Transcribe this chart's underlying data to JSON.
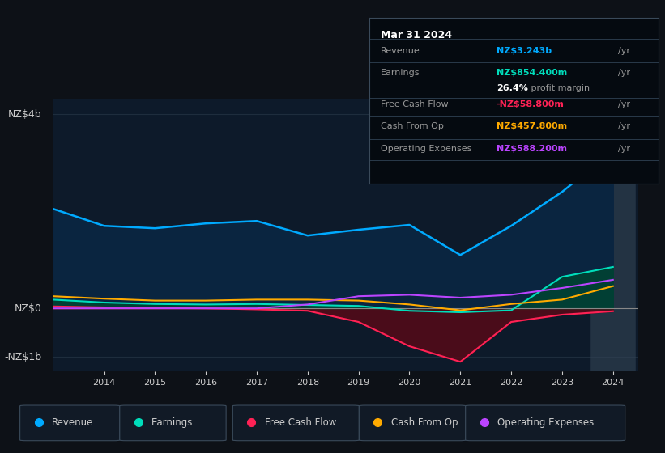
{
  "bg_color": "#0d1117",
  "chart_bg": "#0d1a2a",
  "grid_color": "#1e2d3d",
  "text_color": "#cccccc",
  "years": [
    2013,
    2014,
    2015,
    2016,
    2017,
    2018,
    2019,
    2020,
    2021,
    2022,
    2023,
    2024
  ],
  "revenue": [
    2.05,
    1.7,
    1.65,
    1.75,
    1.8,
    1.5,
    1.62,
    1.72,
    1.1,
    1.7,
    2.4,
    3.243
  ],
  "earnings": [
    0.18,
    0.12,
    0.09,
    0.08,
    0.09,
    0.07,
    0.05,
    -0.05,
    -0.08,
    -0.04,
    0.65,
    0.854
  ],
  "free_cash_flow": [
    0.04,
    0.02,
    0.01,
    0.0,
    -0.02,
    -0.05,
    -0.28,
    -0.78,
    -1.1,
    -0.28,
    -0.13,
    -0.059
  ],
  "cash_from_op": [
    0.25,
    0.2,
    0.16,
    0.16,
    0.18,
    0.18,
    0.16,
    0.08,
    -0.04,
    0.09,
    0.18,
    0.458
  ],
  "operating_expenses": [
    0.0,
    0.0,
    0.0,
    0.0,
    0.0,
    0.08,
    0.25,
    0.28,
    0.22,
    0.28,
    0.42,
    0.588
  ],
  "revenue_color": "#00aaff",
  "earnings_color": "#00ddbb",
  "fcf_color": "#ff2255",
  "cashop_color": "#ffaa00",
  "opex_color": "#bb44ff",
  "revenue_fill": "#0a2540",
  "earnings_fill_pos": "#004433",
  "fcf_fill_neg": "#550a18",
  "ylim_min": -1.3,
  "ylim_max": 4.3,
  "y_labels": [
    "-NZ$1b",
    "NZ$0",
    "NZ$4b"
  ],
  "y_label_vals": [
    -1.0,
    0.0,
    4.0
  ],
  "x_tick_labels": [
    "2014",
    "2015",
    "2016",
    "2017",
    "2018",
    "2019",
    "2020",
    "2021",
    "2022",
    "2023",
    "2024"
  ],
  "x_tick_vals": [
    2014,
    2015,
    2016,
    2017,
    2018,
    2019,
    2020,
    2021,
    2022,
    2023,
    2024
  ],
  "tooltip_title": "Mar 31 2024",
  "tooltip_rows": [
    {
      "label": "Revenue",
      "value": "NZ$3.243b",
      "suffix": "/yr",
      "color": "#00aaff",
      "bold_pct": null
    },
    {
      "label": "Earnings",
      "value": "NZ$854.400m",
      "suffix": "/yr",
      "color": "#00ddbb",
      "bold_pct": null
    },
    {
      "label": "",
      "value": "26.4%",
      "suffix": " profit margin",
      "color": "white",
      "bold_pct": true
    },
    {
      "label": "Free Cash Flow",
      "value": "-NZ$58.800m",
      "suffix": "/yr",
      "color": "#ff2255",
      "bold_pct": null
    },
    {
      "label": "Cash From Op",
      "value": "NZ$457.800m",
      "suffix": "/yr",
      "color": "#ffaa00",
      "bold_pct": null
    },
    {
      "label": "Operating Expenses",
      "value": "NZ$588.200m",
      "suffix": "/yr",
      "color": "#bb44ff",
      "bold_pct": null
    }
  ],
  "legend_items": [
    "Revenue",
    "Earnings",
    "Free Cash Flow",
    "Cash From Op",
    "Operating Expenses"
  ],
  "legend_colors": [
    "#00aaff",
    "#00ddbb",
    "#ff2255",
    "#ffaa00",
    "#bb44ff"
  ]
}
